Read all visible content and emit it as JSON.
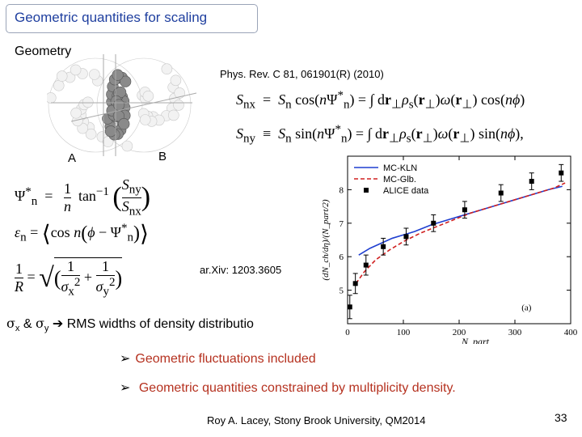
{
  "title": "Geometric quantities for scaling",
  "section_geometry": "Geometry",
  "reference": "Phys. Rev. C 81, 061901(R) (2010)",
  "label_a": "A",
  "label_b": "B",
  "arxiv": "ar.Xiv: 1203.3605",
  "rms_line": {
    "sigma_x": "σ",
    "sub_x": "x",
    "amp": "&",
    "sigma_y": "σ",
    "sub_y": "y",
    "text": "RMS widths of density distributio"
  },
  "bullets": [
    "Geometric fluctuations included",
    "Geometric quantities constrained by multiplicity density."
  ],
  "footer": "Roy A.  Lacey, Stony Brook University, QM2014",
  "page_number": "33",
  "equations": {
    "snx": "Sₙₓ = Sₙ cos(nΨₙ*) = ∫ dr⊥ ρs(r⊥) ω(r⊥) cos(nϕ)",
    "sny": "Sₙᵧ ≡ Sₙ sin(nΨₙ*) = ∫ dr⊥ ρs(r⊥) ω(r⊥) sin(nϕ),",
    "psi_lhs": "Ψₙ* = ",
    "psi_rhs": "1/n tan⁻¹(Sₙᵧ/Sₙₓ)",
    "eps": "εₙ = ⟨cos n(ϕ − Ψₙ*)⟩",
    "rbar": "1/R̄ = √(1/σx² + 1/σy²)"
  },
  "chart_data": {
    "type": "line",
    "x_label": "N_part",
    "y_label": "(dN_ch/dη)/(N_part/2)",
    "xlim": [
      0,
      400
    ],
    "ylim": [
      4,
      9
    ],
    "x_ticks": [
      "0",
      "100",
      "200",
      "300",
      "400"
    ],
    "y_ticks": [
      "5",
      "6",
      "7",
      "8"
    ],
    "panel_label": "(a)",
    "legend_position": "top-right",
    "series": [
      {
        "name": "MC-KLN",
        "style": "solid",
        "color": "#1f3fd0",
        "x": [
          20,
          40,
          60,
          80,
          100,
          120,
          150,
          180,
          210,
          240,
          270,
          300,
          330,
          360,
          385
        ],
        "y": [
          6.05,
          6.25,
          6.4,
          6.55,
          6.65,
          6.75,
          6.95,
          7.1,
          7.25,
          7.4,
          7.55,
          7.7,
          7.85,
          8.0,
          8.1
        ]
      },
      {
        "name": "MC-Glb.",
        "style": "dashed",
        "color": "#d02020",
        "x": [
          15,
          30,
          50,
          75,
          100,
          130,
          160,
          190,
          220,
          250,
          280,
          310,
          340,
          370,
          390
        ],
        "y": [
          5.2,
          5.55,
          5.9,
          6.2,
          6.45,
          6.7,
          6.9,
          7.1,
          7.3,
          7.45,
          7.6,
          7.75,
          7.9,
          8.05,
          8.2
        ]
      },
      {
        "name": "ALICE data",
        "style": "markers",
        "color": "#000000",
        "x": [
          4,
          14,
          33,
          64,
          105,
          154,
          210,
          275,
          330,
          383
        ],
        "y": [
          4.5,
          5.2,
          5.75,
          6.3,
          6.6,
          7.0,
          7.4,
          7.9,
          8.25,
          8.5
        ],
        "err": [
          0.35,
          0.3,
          0.3,
          0.25,
          0.25,
          0.25,
          0.25,
          0.25,
          0.25,
          0.25
        ]
      }
    ]
  }
}
